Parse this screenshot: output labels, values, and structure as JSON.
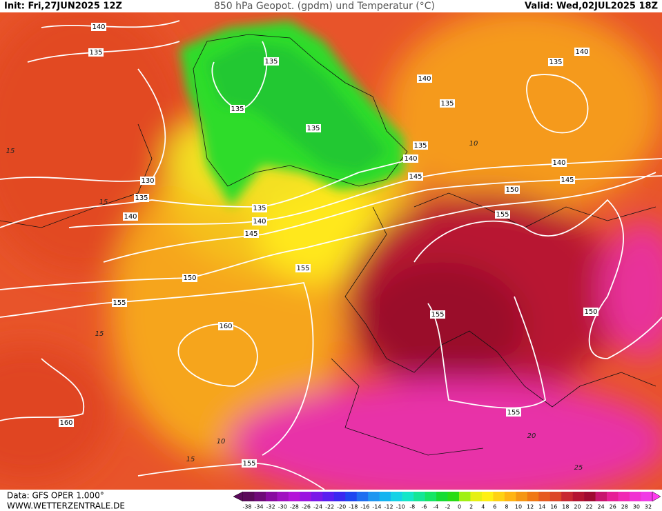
{
  "header": {
    "init": "Init: Fri,27JUN2025 12Z",
    "title": "850 hPa Geopot. (gpdm) und Temperatur (°C)",
    "valid": "Valid: Wed,02JUL2025 18Z"
  },
  "map": {
    "geopotential_labels": [
      "140",
      "135",
      "135",
      "140",
      "135",
      "135",
      "135",
      "135",
      "140",
      "145",
      "130",
      "135",
      "140",
      "135",
      "140",
      "145",
      "150",
      "155",
      "140",
      "135",
      "140",
      "145",
      "155",
      "150",
      "155",
      "155",
      "150",
      "160",
      "160",
      "155",
      "155"
    ],
    "temperature_labels": [
      "15",
      "15",
      "10",
      "10",
      "15",
      "20",
      "25",
      "15"
    ]
  },
  "colorbar": {
    "labels": [
      "-38",
      "-34",
      "-32",
      "-30",
      "-28",
      "-26",
      "-24",
      "-22",
      "-20",
      "-18",
      "-16",
      "-14",
      "-12",
      "-10",
      "-8",
      "-6",
      "-4",
      "-2",
      "0",
      "2",
      "4",
      "6",
      "8",
      "10",
      "12",
      "14",
      "16",
      "18",
      "20",
      "22",
      "24",
      "26",
      "28",
      "30",
      "32"
    ]
  },
  "footer": {
    "source": "Data: GFS OPER 1.000°",
    "site": "WWW.WETTERZENTRALE.DE"
  }
}
